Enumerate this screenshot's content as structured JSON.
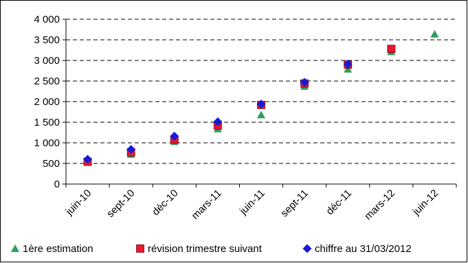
{
  "chart_data": {
    "type": "scatter",
    "categories": [
      "juin-10",
      "sept-10",
      "déc-10",
      "mars-11",
      "juin-11",
      "sept-11",
      "déc-11",
      "mars-12",
      "juin-12"
    ],
    "y_ticks": [
      0,
      500,
      1000,
      1500,
      2000,
      2500,
      3000,
      3500,
      4000
    ],
    "y_tick_labels": [
      "0",
      "500",
      "1 000",
      "1 500",
      "2 000",
      "2 500",
      "3 000",
      "3 500",
      "4 000"
    ],
    "ylim": [
      0,
      4000
    ],
    "grid": "horizontal-dashed",
    "legend_position": "bottom",
    "series": [
      {
        "name": "1ère estimation",
        "marker": "triangle",
        "color": "#2e9e5c",
        "values": [
          530,
          720,
          1030,
          1340,
          1680,
          2370,
          2790,
          3210,
          3640
        ]
      },
      {
        "name": "révision trimestre suivant",
        "marker": "square",
        "color": "#e8192c",
        "values": [
          540,
          770,
          1080,
          1420,
          1920,
          2440,
          2900,
          3280,
          null
        ]
      },
      {
        "name": "chiffre au 31/03/2012",
        "marker": "diamond",
        "color": "#1a1ad4",
        "values": [
          600,
          840,
          1160,
          1510,
          1940,
          2470,
          2910,
          null,
          null
        ]
      }
    ]
  }
}
